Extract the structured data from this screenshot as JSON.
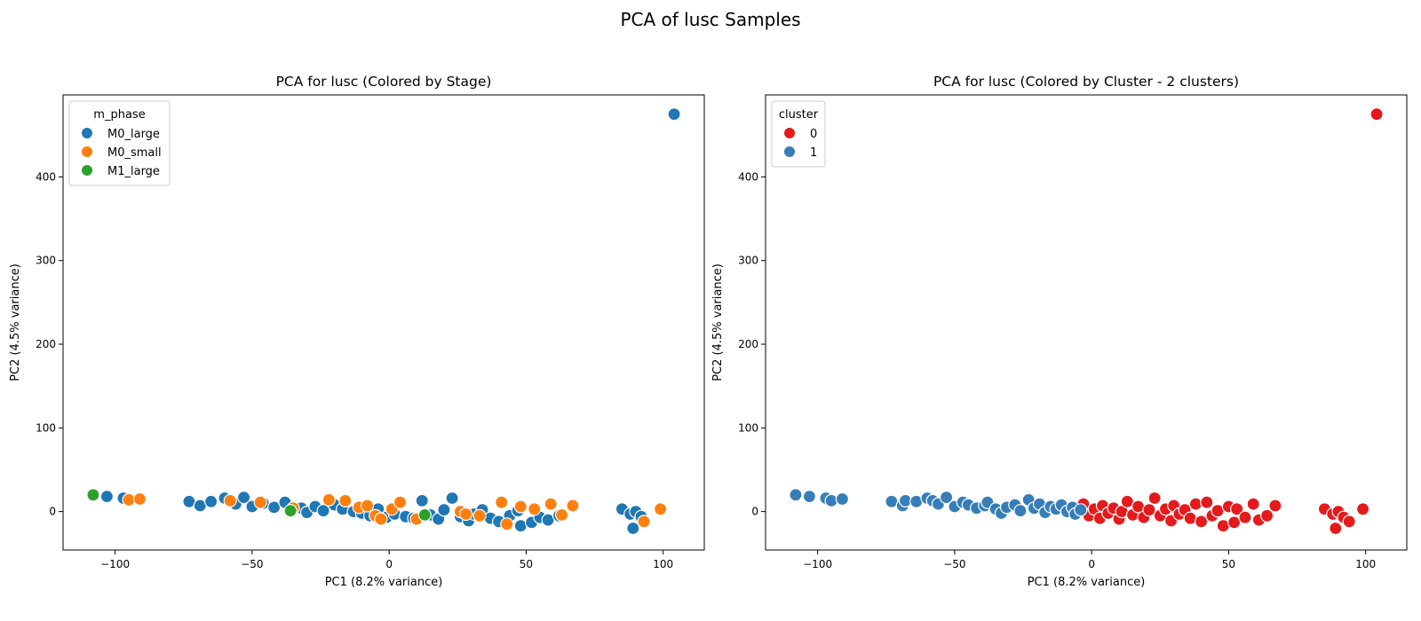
{
  "suptitle": "PCA of lusc Samples",
  "colors": {
    "M0_large": "#1f77b4",
    "M0_small": "#ff7f0e",
    "M1_large": "#2ca02c",
    "cluster_0": "#e41a1c",
    "cluster_1": "#377eb8"
  },
  "chart_data": [
    {
      "type": "scatter",
      "title": "PCA for lusc (Colored by Stage)",
      "xlabel": "PC1 (8.2% variance)",
      "ylabel": "PC2 (4.5% variance)",
      "xlim": [
        -119,
        115
      ],
      "ylim": [
        -46,
        498
      ],
      "xticks": [
        -100,
        -50,
        0,
        50,
        100
      ],
      "yticks": [
        0,
        100,
        200,
        300,
        400
      ],
      "grid": false,
      "legend": {
        "title": "m_phase",
        "placement": "top-left",
        "entries": [
          "M0_large",
          "M0_small",
          "M1_large"
        ]
      },
      "series": [
        {
          "name": "M0_large",
          "points": [
            [
              -103,
              18
            ],
            [
              -97,
              16
            ],
            [
              -73,
              12
            ],
            [
              -69,
              7
            ],
            [
              -65,
              12
            ],
            [
              -60,
              16
            ],
            [
              -56,
              9
            ],
            [
              -53,
              17
            ],
            [
              -50,
              6
            ],
            [
              -46,
              10
            ],
            [
              -42,
              5
            ],
            [
              -38,
              11
            ],
            [
              -32,
              4
            ],
            [
              -30,
              -1
            ],
            [
              -27,
              6
            ],
            [
              -24,
              1
            ],
            [
              -20,
              8
            ],
            [
              -17,
              3
            ],
            [
              -13,
              0
            ],
            [
              -10,
              -2
            ],
            [
              -7,
              -5
            ],
            [
              -4,
              3
            ],
            [
              -1,
              -7
            ],
            [
              2,
              -3
            ],
            [
              6,
              -6
            ],
            [
              9,
              -8
            ],
            [
              12,
              13
            ],
            [
              15,
              -4
            ],
            [
              18,
              -9
            ],
            [
              20,
              2
            ],
            [
              23,
              16
            ],
            [
              26,
              -6
            ],
            [
              29,
              -11
            ],
            [
              31,
              -3
            ],
            [
              34,
              2
            ],
            [
              37,
              -8
            ],
            [
              40,
              -12
            ],
            [
              44,
              -5
            ],
            [
              47,
              1
            ],
            [
              48,
              -17
            ],
            [
              52,
              -13
            ],
            [
              55,
              -7
            ],
            [
              58,
              -10
            ],
            [
              62,
              -5
            ],
            [
              85,
              3
            ],
            [
              88,
              -3
            ],
            [
              90,
              0
            ],
            [
              92,
              -6
            ],
            [
              89,
              -20
            ],
            [
              104,
              475
            ]
          ]
        },
        {
          "name": "M0_small",
          "points": [
            [
              -95,
              14
            ],
            [
              -91,
              15
            ],
            [
              -58,
              13
            ],
            [
              -47,
              11
            ],
            [
              -35,
              4
            ],
            [
              -22,
              14
            ],
            [
              -16,
              13
            ],
            [
              -11,
              5
            ],
            [
              -8,
              7
            ],
            [
              -5,
              -5
            ],
            [
              -3,
              -9
            ],
            [
              1,
              3
            ],
            [
              4,
              11
            ],
            [
              10,
              -9
            ],
            [
              26,
              0
            ],
            [
              28,
              -3
            ],
            [
              33,
              -5
            ],
            [
              41,
              11
            ],
            [
              43,
              -15
            ],
            [
              48,
              6
            ],
            [
              53,
              3
            ],
            [
              59,
              9
            ],
            [
              63,
              -4
            ],
            [
              67,
              7
            ],
            [
              93,
              -12
            ],
            [
              99,
              3
            ]
          ]
        },
        {
          "name": "M1_large",
          "points": [
            [
              -108,
              20
            ],
            [
              -36,
              1
            ],
            [
              13,
              -4
            ]
          ]
        }
      ]
    },
    {
      "type": "scatter",
      "title": "PCA for lusc (Colored by Cluster - 2 clusters)",
      "xlabel": "PC1 (8.2% variance)",
      "ylabel": "PC2 (4.5% variance)",
      "xlim": [
        -119,
        115
      ],
      "ylim": [
        -46,
        498
      ],
      "xticks": [
        -100,
        -50,
        0,
        50,
        100
      ],
      "yticks": [
        0,
        100,
        200,
        300,
        400
      ],
      "grid": false,
      "legend": {
        "title": "cluster",
        "placement": "top-left",
        "entries": [
          "0",
          "1"
        ]
      },
      "series": [
        {
          "name": "0",
          "points": [
            [
              -3,
              9
            ],
            [
              -1,
              -5
            ],
            [
              1,
              3
            ],
            [
              3,
              -8
            ],
            [
              4,
              7
            ],
            [
              6,
              -2
            ],
            [
              8,
              4
            ],
            [
              10,
              -9
            ],
            [
              11,
              0
            ],
            [
              13,
              12
            ],
            [
              15,
              -4
            ],
            [
              17,
              6
            ],
            [
              19,
              -7
            ],
            [
              21,
              2
            ],
            [
              23,
              16
            ],
            [
              25,
              -5
            ],
            [
              27,
              3
            ],
            [
              29,
              -11
            ],
            [
              30,
              7
            ],
            [
              32,
              -3
            ],
            [
              34,
              2
            ],
            [
              36,
              -8
            ],
            [
              38,
              9
            ],
            [
              40,
              -12
            ],
            [
              42,
              11
            ],
            [
              44,
              -5
            ],
            [
              46,
              1
            ],
            [
              48,
              -17
            ],
            [
              50,
              6
            ],
            [
              52,
              -13
            ],
            [
              53,
              3
            ],
            [
              56,
              -7
            ],
            [
              59,
              9
            ],
            [
              61,
              -10
            ],
            [
              64,
              -5
            ],
            [
              67,
              7
            ],
            [
              85,
              3
            ],
            [
              88,
              -3
            ],
            [
              90,
              0
            ],
            [
              92,
              -7
            ],
            [
              89,
              -20
            ],
            [
              94,
              -12
            ],
            [
              99,
              3
            ],
            [
              104,
              475
            ]
          ]
        },
        {
          "name": "1",
          "points": [
            [
              -108,
              20
            ],
            [
              -103,
              18
            ],
            [
              -97,
              16
            ],
            [
              -95,
              13
            ],
            [
              -91,
              15
            ],
            [
              -73,
              12
            ],
            [
              -69,
              7
            ],
            [
              -68,
              13
            ],
            [
              -64,
              12
            ],
            [
              -60,
              16
            ],
            [
              -58,
              13
            ],
            [
              -56,
              9
            ],
            [
              -53,
              17
            ],
            [
              -50,
              6
            ],
            [
              -47,
              11
            ],
            [
              -45,
              8
            ],
            [
              -42,
              4
            ],
            [
              -39,
              7
            ],
            [
              -38,
              11
            ],
            [
              -35,
              3
            ],
            [
              -33,
              -2
            ],
            [
              -31,
              5
            ],
            [
              -28,
              8
            ],
            [
              -26,
              1
            ],
            [
              -23,
              14
            ],
            [
              -21,
              4
            ],
            [
              -19,
              9
            ],
            [
              -17,
              -1
            ],
            [
              -15,
              6
            ],
            [
              -13,
              3
            ],
            [
              -11,
              8
            ],
            [
              -9,
              0
            ],
            [
              -7,
              5
            ],
            [
              -6,
              -3
            ],
            [
              -4,
              2
            ]
          ]
        }
      ]
    }
  ]
}
